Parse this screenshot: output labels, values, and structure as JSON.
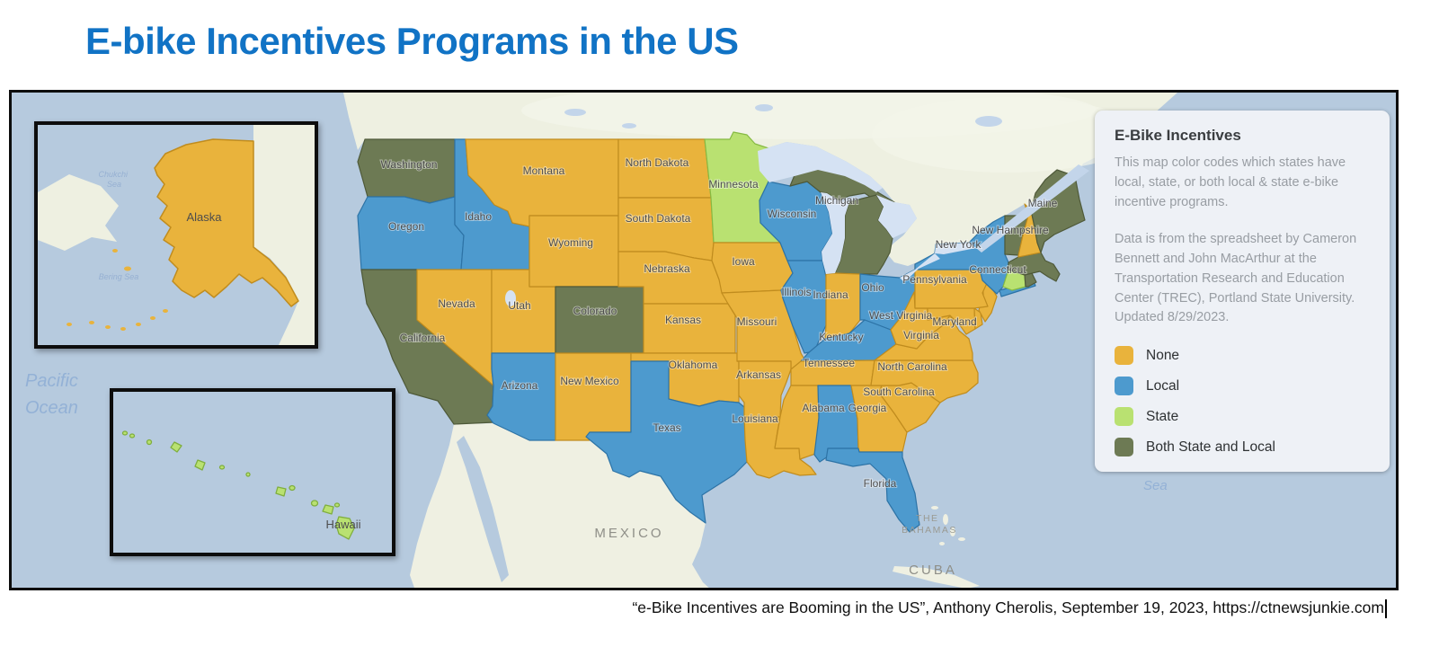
{
  "page": {
    "title": "E-bike Incentives Programs in the US",
    "title_color": "#1173c5"
  },
  "legend_panel": {
    "title": "E-Bike Incentives",
    "description": "This map color codes which states have local, state, or both local & state e-bike incentive programs.",
    "source_note": "Data is from the spreadsheet by Cameron Bennett and John MacArthur at the Transportation Research and Education Center (TREC), Portland State University. Updated 8/29/2023.",
    "items": [
      {
        "key": "none",
        "label": "None",
        "color": "#e9b33c"
      },
      {
        "key": "local",
        "label": "Local",
        "color": "#4d9ace"
      },
      {
        "key": "state",
        "label": "State",
        "color": "#b9e171"
      },
      {
        "key": "both",
        "label": "Both State and Local",
        "color": "#6d7a54"
      }
    ]
  },
  "map": {
    "geo_labels": {
      "mexico": "MEXICO",
      "bahamas_lines": [
        "THE",
        "BAHAMAS"
      ],
      "cuba": "CUBA",
      "pacific_lines": [
        "Pacific",
        "Ocean"
      ],
      "sea": "Sea"
    },
    "insets": [
      {
        "name": "Alaska",
        "label": "Alaska",
        "sea_labels_lines": [
          [
            "Chukchi",
            "Sea"
          ],
          [
            "Bering Sea"
          ]
        ]
      },
      {
        "name": "Hawaii",
        "label": "Hawaii"
      }
    ],
    "states": [
      {
        "name": "Washington",
        "status": "both",
        "labeled": true
      },
      {
        "name": "Oregon",
        "status": "local",
        "labeled": true
      },
      {
        "name": "California",
        "status": "both",
        "labeled": true
      },
      {
        "name": "Idaho",
        "status": "local",
        "labeled": true
      },
      {
        "name": "Nevada",
        "status": "none",
        "labeled": true
      },
      {
        "name": "Utah",
        "status": "none",
        "labeled": true
      },
      {
        "name": "Arizona",
        "status": "local",
        "labeled": true
      },
      {
        "name": "Montana",
        "status": "none",
        "labeled": true
      },
      {
        "name": "Wyoming",
        "status": "none",
        "labeled": true
      },
      {
        "name": "Colorado",
        "status": "both",
        "labeled": true
      },
      {
        "name": "New Mexico",
        "status": "none",
        "labeled": true
      },
      {
        "name": "North Dakota",
        "status": "none",
        "labeled": true
      },
      {
        "name": "South Dakota",
        "status": "none",
        "labeled": true
      },
      {
        "name": "Nebraska",
        "status": "none",
        "labeled": true
      },
      {
        "name": "Kansas",
        "status": "none",
        "labeled": true
      },
      {
        "name": "Oklahoma",
        "status": "none",
        "labeled": true
      },
      {
        "name": "Texas",
        "status": "local",
        "labeled": true
      },
      {
        "name": "Minnesota",
        "status": "state",
        "labeled": true
      },
      {
        "name": "Iowa",
        "status": "none",
        "labeled": true
      },
      {
        "name": "Missouri",
        "status": "none",
        "labeled": true
      },
      {
        "name": "Arkansas",
        "status": "none",
        "labeled": true
      },
      {
        "name": "Louisiana",
        "status": "none",
        "labeled": true
      },
      {
        "name": "Wisconsin",
        "status": "local",
        "labeled": true
      },
      {
        "name": "Illinois",
        "status": "local",
        "labeled": true
      },
      {
        "name": "Michigan",
        "status": "both",
        "labeled": true
      },
      {
        "name": "Indiana",
        "status": "none",
        "labeled": true
      },
      {
        "name": "Ohio",
        "status": "local",
        "labeled": true
      },
      {
        "name": "Kentucky",
        "status": "local",
        "labeled": true
      },
      {
        "name": "Tennessee",
        "status": "none",
        "labeled": true
      },
      {
        "name": "Mississippi",
        "status": "none",
        "labeled": false
      },
      {
        "name": "Alabama",
        "status": "local",
        "labeled": true
      },
      {
        "name": "Georgia",
        "status": "none",
        "labeled": true
      },
      {
        "name": "Florida",
        "status": "local",
        "labeled": true
      },
      {
        "name": "South Carolina",
        "status": "none",
        "labeled": true
      },
      {
        "name": "North Carolina",
        "status": "none",
        "labeled": true
      },
      {
        "name": "Virginia",
        "status": "none",
        "labeled": true
      },
      {
        "name": "West Virginia",
        "status": "none",
        "labeled": true
      },
      {
        "name": "Maryland",
        "status": "none",
        "labeled": true
      },
      {
        "name": "Delaware",
        "status": "none",
        "labeled": false
      },
      {
        "name": "New Jersey",
        "status": "none",
        "labeled": false
      },
      {
        "name": "Pennsylvania",
        "status": "none",
        "labeled": true
      },
      {
        "name": "New York",
        "status": "local",
        "labeled": true
      },
      {
        "name": "Connecticut",
        "status": "state",
        "labeled": true
      },
      {
        "name": "Rhode Island",
        "status": "both",
        "labeled": false
      },
      {
        "name": "Massachusetts",
        "status": "both",
        "labeled": false
      },
      {
        "name": "Vermont",
        "status": "both",
        "labeled": false
      },
      {
        "name": "New Hampshire",
        "status": "none",
        "labeled": true
      },
      {
        "name": "Maine",
        "status": "both",
        "labeled": true
      },
      {
        "name": "Alaska",
        "status": "none",
        "labeled": true,
        "inset": true
      },
      {
        "name": "Hawaii",
        "status": "state",
        "labeled": true,
        "inset": true
      }
    ]
  },
  "citation": {
    "text": "“e-Bike Incentives are Booming in the US”, Anthony Cherolis, September 19, 2023, https://ctnewsjunkie.com"
  }
}
